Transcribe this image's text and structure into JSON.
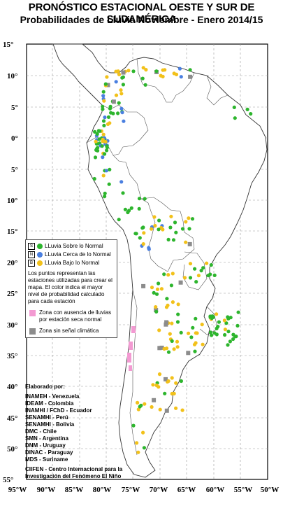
{
  "title": "PRONÓSTICO ESTACIONAL OESTE Y SUR DE SUDAMÉRICA",
  "subtitle": "Probabilidades de Lluvia Noviembre - Enero 2014/15",
  "lat_labels": [
    "15°",
    "10°",
    "5°",
    "0°",
    "5°",
    "10°",
    "15°",
    "20°",
    "25°",
    "30°",
    "35°",
    "40°",
    "45°",
    "50°",
    "55°"
  ],
  "lon_labels": [
    "95°W",
    "90°W",
    "85°W",
    "80°W",
    "75°W",
    "70°W",
    "65°W",
    "60°W",
    "55°W",
    "50°W"
  ],
  "legend": {
    "items": [
      {
        "box": "S",
        "label": "LLuvia Sobre lo Normal",
        "color": "#2db52d"
      },
      {
        "box": "N",
        "label": "LLuvia Cerca de lo Normal",
        "color": "#4a7fe0"
      },
      {
        "box": "B",
        "label": "LLuvia Bajo lo Normal",
        "color": "#f2c11a"
      }
    ],
    "note": "Los puntos representan las estaciones utilizadas para crear el mapa. El color indica el mayor nivel de probabilidad calculado para cada estación",
    "dry_label": "Zona con ausencia de lluvias por estación seca normal",
    "dry_color": "#f39ad2",
    "nosignal_label": "Zona sin señal climática",
    "nosignal_color": "#8c8c8c"
  },
  "credits": {
    "heading": "Elaborado por:",
    "agencies": [
      "INAMEH - Venezuela",
      "IDEAM - Colombia",
      "INAMHI / FChD - Ecuador",
      "SENAMHI - Perú",
      "SENAMHI - Bolivia",
      "DMC - Chile",
      "SMN - Argentina",
      "DNM - Uruguay",
      "DINAC - Paraguay",
      "MDS - Suriname"
    ],
    "footer_1": "CIIFEN - Centro Internacional para la",
    "footer_2": "Investigación del Fenómeno El Niño"
  }
}
